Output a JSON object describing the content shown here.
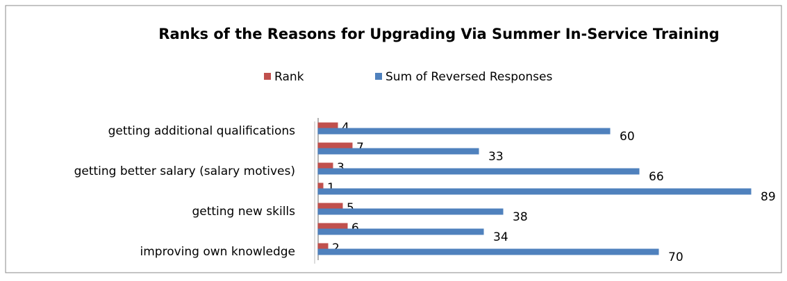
{
  "chart_data": {
    "type": "bar",
    "orientation": "horizontal",
    "title": "Ranks of the Reasons for Upgrading Via Summer In-Service Training",
    "categories": [
      "getting additional qualifications",
      null,
      "getting better salary (salary motives)",
      null,
      "getting new skills",
      null,
      "improving own knowledge"
    ],
    "series": [
      {
        "name": "Rank",
        "color": "#c0504d",
        "values": [
          4,
          7,
          3,
          1,
          5,
          6,
          2
        ]
      },
      {
        "name": "Sum of Reversed Responses",
        "color": "#4f81bd",
        "values": [
          60,
          33,
          66,
          89,
          38,
          34,
          70
        ]
      }
    ],
    "legend": "top"
  }
}
